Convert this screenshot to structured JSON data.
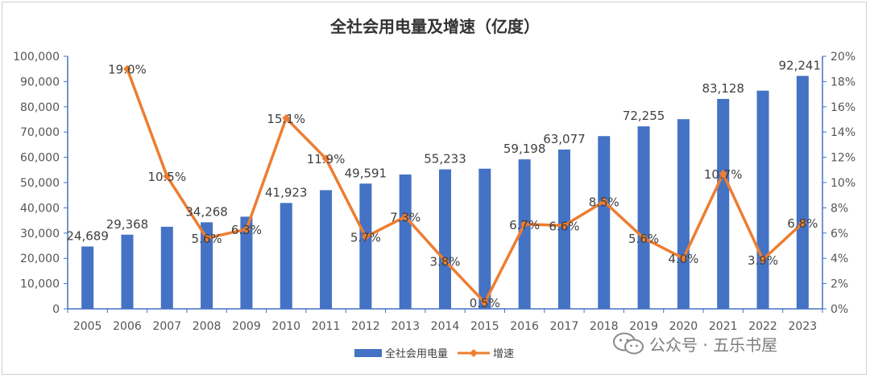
{
  "chart_data": {
    "type": "bar+line",
    "title": "全社会用电量及增速（亿度）",
    "categories": [
      "2005",
      "2006",
      "2007",
      "2008",
      "2009",
      "2010",
      "2011",
      "2012",
      "2013",
      "2014",
      "2015",
      "2016",
      "2017",
      "2018",
      "2019",
      "2020",
      "2021",
      "2022",
      "2023"
    ],
    "series": [
      {
        "name": "全社会用电量",
        "type": "bar",
        "axis": "left",
        "color": "#4472C4",
        "values": [
          24689,
          29368,
          32500,
          34268,
          36500,
          41923,
          47000,
          49591,
          53200,
          55233,
          55500,
          59198,
          63077,
          68400,
          72255,
          75100,
          83128,
          86400,
          92241
        ]
      },
      {
        "name": "增速",
        "type": "line",
        "axis": "right",
        "color": "#ED7D31",
        "values": [
          null,
          19.0,
          10.5,
          5.6,
          6.3,
          15.1,
          11.9,
          5.7,
          7.3,
          3.8,
          0.5,
          6.7,
          6.6,
          8.5,
          5.6,
          4.0,
          10.7,
          3.9,
          6.8
        ]
      }
    ],
    "bar_labels": [
      {
        "index": 0,
        "text": "24,689"
      },
      {
        "index": 1,
        "text": "29,368"
      },
      {
        "index": 3,
        "text": "34,268"
      },
      {
        "index": 5,
        "text": "41,923"
      },
      {
        "index": 7,
        "text": "49,591"
      },
      {
        "index": 9,
        "text": "55,233"
      },
      {
        "index": 11,
        "text": "59,198"
      },
      {
        "index": 12,
        "text": "63,077"
      },
      {
        "index": 14,
        "text": "72,255"
      },
      {
        "index": 16,
        "text": "83,128"
      },
      {
        "index": 18,
        "text": "92,241"
      }
    ],
    "line_labels": [
      {
        "index": 1,
        "text": "19.0%"
      },
      {
        "index": 2,
        "text": "10.5%"
      },
      {
        "index": 3,
        "text": "5.6%"
      },
      {
        "index": 4,
        "text": "6.3%"
      },
      {
        "index": 5,
        "text": "15.1%"
      },
      {
        "index": 6,
        "text": "11.9%"
      },
      {
        "index": 7,
        "text": "5.7%"
      },
      {
        "index": 8,
        "text": "7.3%"
      },
      {
        "index": 9,
        "text": "3.8%"
      },
      {
        "index": 10,
        "text": "0.5%"
      },
      {
        "index": 11,
        "text": "6.7%"
      },
      {
        "index": 12,
        "text": "6.6%"
      },
      {
        "index": 13,
        "text": "8.5%"
      },
      {
        "index": 14,
        "text": "5.6%"
      },
      {
        "index": 15,
        "text": "4.0%"
      },
      {
        "index": 16,
        "text": "10.7%"
      },
      {
        "index": 17,
        "text": "3.9%"
      },
      {
        "index": 18,
        "text": "6.8%"
      }
    ],
    "y_left": {
      "min": 0,
      "max": 100000,
      "step": 10000,
      "ticks": [
        "0",
        "10,000",
        "20,000",
        "30,000",
        "40,000",
        "50,000",
        "60,000",
        "70,000",
        "80,000",
        "90,000",
        "100,000"
      ]
    },
    "y_right": {
      "min": 0,
      "max": 20,
      "step": 2,
      "ticks": [
        "0%",
        "2%",
        "4%",
        "6%",
        "8%",
        "10%",
        "12%",
        "14%",
        "16%",
        "18%",
        "20%"
      ]
    },
    "legend_position": "bottom-center",
    "grid": false
  },
  "watermark": {
    "text": "公众号 · 五乐书屋",
    "icon": "wechat-icon"
  }
}
